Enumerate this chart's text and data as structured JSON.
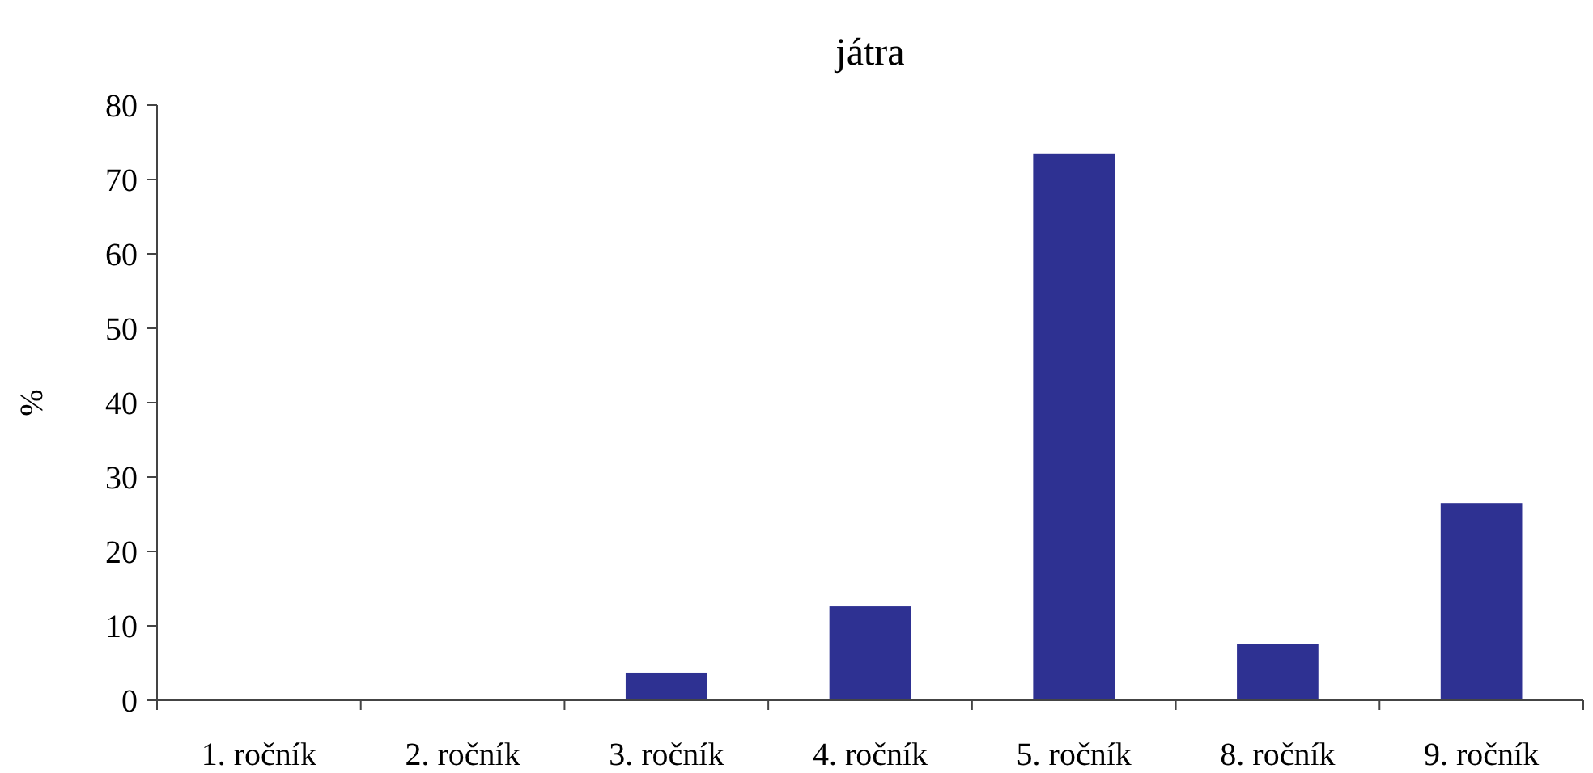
{
  "chart_data": {
    "type": "bar",
    "title": "játra",
    "ylabel": "%",
    "categories": [
      "1. ročník",
      "2. ročník",
      "3. ročník",
      "4. ročník",
      "5. ročník",
      "8. ročník",
      "9. ročník"
    ],
    "values": [
      0,
      0,
      3.7,
      12.6,
      73.5,
      7.6,
      26.5
    ],
    "color": "#2e3192",
    "ylim": [
      0,
      80
    ],
    "yticks": [
      0,
      10,
      20,
      30,
      40,
      50,
      60,
      70,
      80
    ],
    "grid": false
  }
}
